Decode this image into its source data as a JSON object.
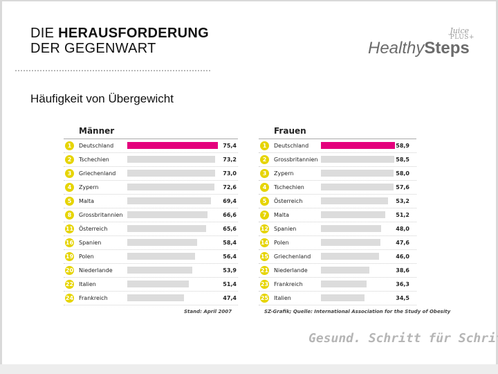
{
  "slide": {
    "title_line1_normal": "DIE ",
    "title_line1_bold": "HERAUSFORDERUNG",
    "title_line2": "DER GEGENWART",
    "subtitle": "Häufigkeit von Übergewicht",
    "tagline": "Gesund. Schritt für Schritt."
  },
  "logo": {
    "juice": "Juice",
    "plus": "PLUS+",
    "healthy": "Healthy",
    "steps": "Steps"
  },
  "colors": {
    "highlight": "#e4007c",
    "bar": "#dcdcdc",
    "rank_badge": "#e6d400"
  },
  "chart_data": [
    {
      "type": "bar",
      "orientation": "horizontal",
      "title": "Männer",
      "ranks": [
        "1",
        "2",
        "3",
        "4",
        "5",
        "8",
        "11",
        "16",
        "19",
        "20",
        "22",
        "24"
      ],
      "categories": [
        "Deutschland",
        "Tschechien",
        "Griechenland",
        "Zypern",
        "Malta",
        "Grossbritannien",
        "Österreich",
        "Spanien",
        "Polen",
        "Niederlande",
        "Italien",
        "Frankreich"
      ],
      "values": [
        75.4,
        73.2,
        73.0,
        72.6,
        69.4,
        66.6,
        65.6,
        58.4,
        56.4,
        53.9,
        51.4,
        47.4
      ],
      "value_labels": [
        "75,4",
        "73,2",
        "73,0",
        "72,6",
        "69,4",
        "66,6",
        "65,6",
        "58,4",
        "56,4",
        "53,9",
        "51,4",
        "47,4"
      ],
      "highlight_index": 0,
      "xlim": [
        0,
        75.4
      ],
      "footnote": "Stand: April 2007"
    },
    {
      "type": "bar",
      "orientation": "horizontal",
      "title": "Frauen",
      "ranks": [
        "1",
        "2",
        "3",
        "4",
        "5",
        "7",
        "12",
        "14",
        "15",
        "21",
        "23",
        "25"
      ],
      "categories": [
        "Deutschland",
        "Grossbritannien",
        "Zypern",
        "Tschechien",
        "Österreich",
        "Malta",
        "Spanien",
        "Polen",
        "Griechenland",
        "Niederlande",
        "Frankreich",
        "Italien"
      ],
      "values": [
        58.9,
        58.5,
        58.0,
        57.6,
        53.2,
        51.2,
        48.0,
        47.6,
        46.0,
        38.6,
        36.3,
        34.5
      ],
      "value_labels": [
        "58,9",
        "58,5",
        "58,0",
        "57,6",
        "53,2",
        "51,2",
        "48,0",
        "47,6",
        "46,0",
        "38,6",
        "36,3",
        "34,5"
      ],
      "highlight_index": 0,
      "xlim": [
        0,
        58.9
      ],
      "footnote": "SZ-Grafik; Quelle: International Association for the Study of Obesity"
    }
  ]
}
